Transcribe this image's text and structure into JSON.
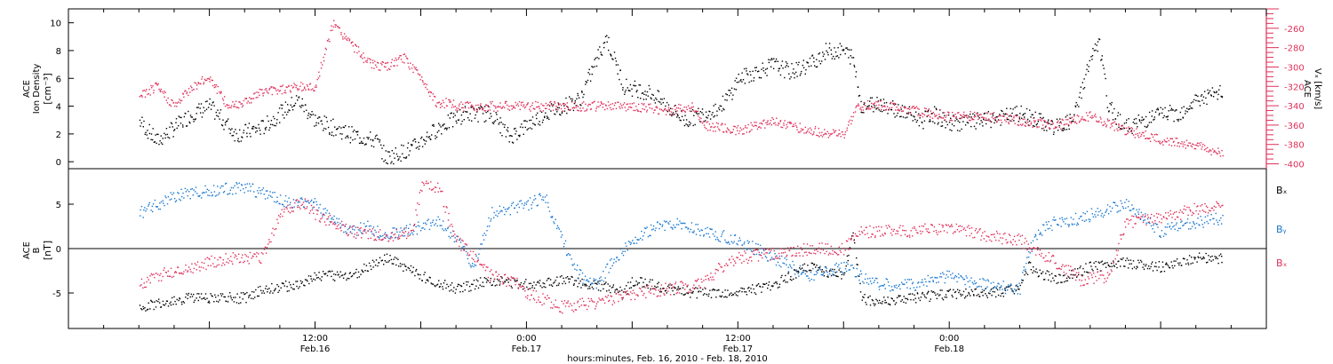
{
  "chart_data": [
    {
      "type": "scatter",
      "panel": "top",
      "ylabel_left": [
        "ACE",
        "Ion Density",
        "[cm⁻³]"
      ],
      "ylabel_right": [
        "ACE",
        "Vₓ [km/s]"
      ],
      "ylim_left": [
        -0.5,
        11
      ],
      "ylim_right": [
        -405,
        -240
      ],
      "yticks_left": [
        0,
        2,
        4,
        6,
        8,
        10
      ],
      "yticks_right": [
        -260,
        -280,
        -300,
        -320,
        -340,
        -360,
        -380,
        -400
      ],
      "colors": {
        "density": "#000000",
        "velocity": "#e0305a"
      },
      "series": [
        {
          "key": "density",
          "axis": "left",
          "noise": 0.6,
          "x": [
            0,
            1,
            3,
            4,
            5.5,
            7,
            9,
            10,
            12,
            13.5,
            14,
            15.5,
            17,
            18.5,
            20,
            21,
            23,
            25,
            26.5,
            27.5,
            29,
            30,
            31,
            32,
            33,
            33.6,
            34,
            35,
            36,
            37,
            38,
            39,
            40,
            40.5,
            41,
            42,
            43,
            44.5,
            45,
            46,
            48,
            50,
            52,
            53,
            54,
            54.5,
            55,
            56,
            57,
            58,
            59,
            60,
            61.5
          ],
          "y": [
            3,
            1.5,
            3.5,
            4,
            2,
            2.5,
            4.5,
            3,
            2,
            1.5,
            0.3,
            1,
            2.5,
            3.5,
            3.5,
            1.8,
            3.5,
            4.5,
            9,
            5.5,
            5,
            4,
            3,
            3.5,
            4,
            5,
            6,
            6.5,
            7,
            6.5,
            7,
            8,
            8,
            7.5,
            4,
            4.3,
            3.8,
            3,
            3.5,
            2.8,
            3,
            3.5,
            2.5,
            3,
            7.5,
            8.5,
            4,
            2.5,
            3,
            3.5,
            3.5,
            4.5,
            5
          ]
        },
        {
          "key": "velocity",
          "axis": "right",
          "noise": 5,
          "x": [
            0,
            1,
            2,
            3,
            4,
            5,
            6,
            7,
            9,
            10,
            11,
            12,
            13,
            14,
            15,
            16,
            17,
            17.5,
            18,
            20,
            22,
            24,
            26,
            28,
            30,
            31.5,
            32,
            34,
            36,
            38,
            40,
            40.8,
            42,
            44,
            46,
            48,
            50,
            52,
            54,
            56,
            58,
            60,
            61.5
          ],
          "y": [
            -330,
            -320,
            -340,
            -320,
            -310,
            -340,
            -335,
            -325,
            -320,
            -320,
            -255,
            -275,
            -295,
            -300,
            -290,
            -310,
            -340,
            -335,
            -340,
            -340,
            -340,
            -340,
            -340,
            -340,
            -345,
            -340,
            -360,
            -365,
            -355,
            -365,
            -370,
            -340,
            -338,
            -345,
            -350,
            -350,
            -355,
            -360,
            -350,
            -365,
            -375,
            -380,
            -390
          ]
        }
      ]
    },
    {
      "type": "scatter",
      "panel": "bottom",
      "ylabel_left": [
        "ACE",
        "B",
        "[nT]"
      ],
      "ylim": [
        -9,
        9
      ],
      "yticks": [
        -5,
        0,
        5
      ],
      "zero_line": true,
      "legend": [
        "Bₓ",
        "Bᵧ",
        "Bₓ"
      ],
      "legend_placement": "right",
      "colors": {
        "Bx": "#000000",
        "By": "#1a78d0",
        "Bz": "#e0305a"
      },
      "series": [
        {
          "key": "Bx",
          "noise": 0.6,
          "x": [
            0,
            3,
            6,
            7,
            9,
            10,
            12,
            14,
            16,
            18,
            20,
            22,
            24,
            26,
            27.5,
            28,
            30,
            32,
            34,
            36,
            38,
            40,
            40.5,
            41,
            42,
            44,
            46,
            48,
            50,
            50.5,
            52,
            54,
            56,
            58,
            60,
            61.5
          ],
          "y": [
            -6.5,
            -5.5,
            -5.5,
            -4.5,
            -4,
            -3,
            -3,
            -1,
            -3,
            -4.5,
            -3.5,
            -4,
            -3.5,
            -4,
            -5,
            -3.5,
            -4.5,
            -5,
            -5,
            -4,
            -2,
            -3,
            2,
            -5.5,
            -6,
            -5.5,
            -5,
            -5,
            -4.5,
            -2,
            -3.5,
            -2,
            -1.5,
            -2,
            -1,
            -1
          ]
        },
        {
          "key": "By",
          "noise": 0.7,
          "x": [
            0,
            1,
            2,
            4,
            6,
            8,
            10,
            12,
            13,
            14,
            16,
            17,
            18,
            19,
            20,
            22,
            23,
            24,
            25,
            26,
            27,
            28,
            30,
            32,
            34,
            36,
            38,
            40,
            42,
            44,
            46,
            48,
            50,
            50.5,
            51,
            52,
            53.5,
            55,
            56,
            58,
            60,
            61.5
          ],
          "y": [
            4,
            5,
            6,
            6.5,
            7,
            5.5,
            5,
            2,
            2.5,
            1.5,
            2.5,
            3,
            1,
            -2,
            4,
            5,
            6,
            1,
            -3,
            -4,
            -1,
            1,
            3,
            2,
            1,
            -1,
            -3,
            -2,
            -4,
            -4,
            -3,
            -4,
            -4.5,
            0,
            2,
            3,
            3.5,
            4.5,
            5,
            2,
            3,
            3.5
          ]
        },
        {
          "key": "Bz",
          "noise": 0.7,
          "x": [
            0,
            1,
            3,
            5,
            7,
            8,
            9,
            9.5,
            10,
            12,
            14,
            15.5,
            16,
            17,
            18,
            20,
            21.5,
            22,
            24,
            26,
            28,
            30,
            32,
            33,
            34,
            36,
            38,
            40,
            41,
            42,
            44,
            46,
            48,
            50,
            52,
            53.5,
            55,
            56,
            58,
            60,
            61.5
          ],
          "y": [
            -4,
            -3,
            -2,
            -1,
            -1,
            4,
            5,
            5,
            4,
            2,
            1.5,
            2,
            7,
            7,
            1,
            -3,
            -4,
            -5,
            -6.5,
            -6,
            -5,
            -4.5,
            -4,
            -2,
            -1,
            -0.5,
            0,
            0,
            2,
            2,
            2,
            2.5,
            1.5,
            1,
            -1.5,
            -3.5,
            -3,
            3,
            3.5,
            4.5,
            5
          ]
        }
      ]
    }
  ],
  "x_axis": {
    "range_hours": [
      -4,
      64
    ],
    "ticks": [
      {
        "hour": 10,
        "time": "12:00",
        "date": "Feb.16"
      },
      {
        "hour": 22,
        "time": "0:00",
        "date": "Feb.17"
      },
      {
        "hour": 34,
        "time": "12:00",
        "date": "Feb.17"
      },
      {
        "hour": 46,
        "time": "0:00",
        "date": "Feb.18"
      }
    ],
    "label": "hours:minutes, Feb. 16, 2010 - Feb. 18, 2010"
  }
}
